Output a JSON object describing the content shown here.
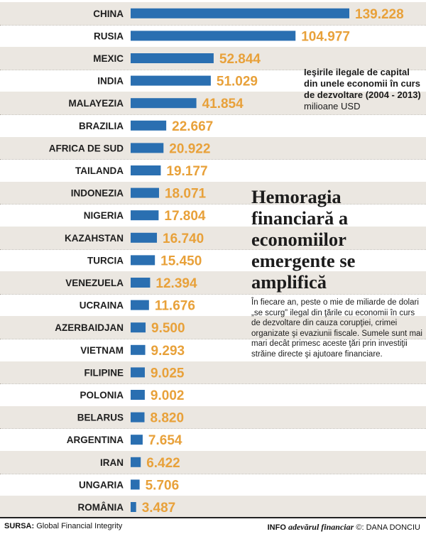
{
  "chart_data": {
    "type": "bar",
    "orientation": "horizontal",
    "categories": [
      "CHINA",
      "RUSIA",
      "MEXIC",
      "INDIA",
      "MALAYEZIA",
      "BRAZILIA",
      "AFRICA DE SUD",
      "TAILANDA",
      "INDONEZIA",
      "NIGERIA",
      "KAZAHSTAN",
      "TURCIA",
      "VENEZUELA",
      "UCRAINA",
      "AZERBAIDJAN",
      "VIETNAM",
      "FILIPINE",
      "POLONIA",
      "BELARUS",
      "ARGENTINA",
      "IRAN",
      "UNGARIA",
      "ROMÂNIA"
    ],
    "values": [
      139228,
      104977,
      52844,
      51029,
      41854,
      22667,
      20922,
      19177,
      18071,
      17804,
      16740,
      15450,
      12394,
      11676,
      9500,
      9293,
      9025,
      9002,
      8820,
      7654,
      6422,
      5706,
      3487
    ],
    "value_labels": [
      "139.228",
      "104.977",
      "52.844",
      "51.029",
      "41.854",
      "22.667",
      "20.922",
      "19.177",
      "18.071",
      "17.804",
      "16.740",
      "15.450",
      "12.394",
      "11.676",
      "9.500",
      "9.293",
      "9.025",
      "9.002",
      "8.820",
      "7.654",
      "6.422",
      "5.706",
      "3.487"
    ],
    "bar_color": "#2a6fb1",
    "value_label_color": "#e8a13a",
    "stripe_color": "#ebe7e1",
    "grid": false
  },
  "legend": {
    "title": "Ieşirile ilegale de capital din unele economii în curs de dezvoltare (2004 - 2013)",
    "unit": "milioane USD"
  },
  "headline": "Hemoragia financiară a economiilor emergente se amplifică",
  "body_text": "În fiecare an, peste o mie de miliarde de dolari „se scurg” ilegal din ţările cu economii în curs de dezvoltare din cauza corupţiei, crimei organizate şi evaziunii fiscale. Sumele sunt mai mari decât primesc aceste ţări prin investiţii străine directe şi ajutoare financiare.",
  "footer": {
    "source_label": "SURSA:",
    "source_value": "Global Financial Integrity",
    "info_label": "INFO",
    "brand": "adevărul financiar",
    "copyright": "©",
    "author": ": DANA DONCIU"
  }
}
